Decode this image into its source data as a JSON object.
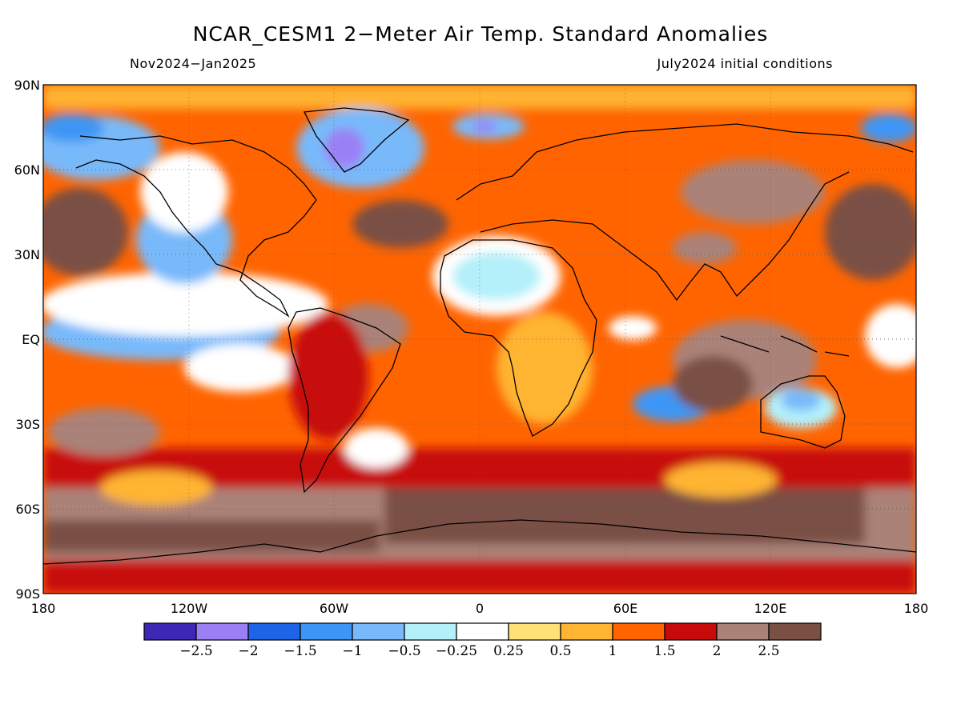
{
  "title": "NCAR_CESM1 2−Meter Air Temp. Standard Anomalies",
  "period": "Nov2024−Jan2025",
  "init": "July2024 initial conditions",
  "lat_labels": [
    "90N",
    "60N",
    "30N",
    "EQ",
    "30S",
    "60S",
    "90S"
  ],
  "lon_labels": [
    "180",
    "120W",
    "60W",
    "0",
    "60E",
    "120E",
    "180"
  ],
  "legend": {
    "colors": [
      "#3c28b4",
      "#9b80f5",
      "#1e64e6",
      "#3c96f5",
      "#78b9fa",
      "#b4f0fa",
      "#ffffff",
      "#ffe178",
      "#ffb432",
      "#ff6400",
      "#c80a0a",
      "#aa8278",
      "#7a5044"
    ],
    "labels": [
      "−2.5",
      "−2",
      "−1.5",
      "−1",
      "−0.5",
      "−0.25",
      "0.25",
      "0.5",
      "1",
      "1.5",
      "2",
      "2.5"
    ]
  }
}
